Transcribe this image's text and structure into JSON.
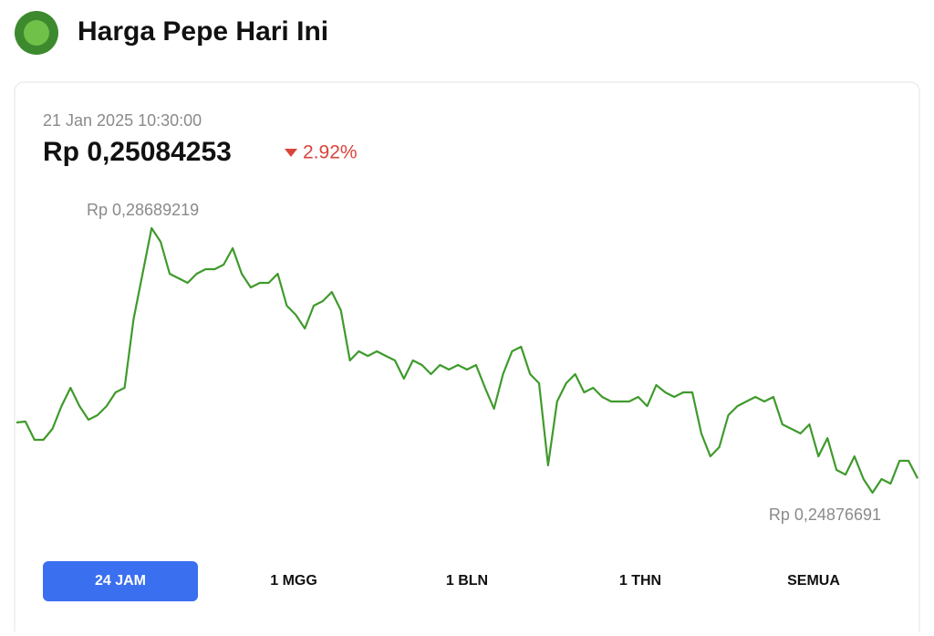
{
  "header": {
    "title": "Harga Pepe Hari Ini"
  },
  "price_panel": {
    "timestamp": "21 Jan 2025 10:30:00",
    "price": "Rp 0,25084253",
    "change": "2.92%"
  },
  "chart_data": {
    "type": "line",
    "color": "#3f9a2c",
    "high_label": "Rp 0,28689219",
    "low_label": "Rp 0,24876691",
    "values": [
      0.25889,
      0.25902,
      0.25639,
      0.25639,
      0.25797,
      0.26125,
      0.26388,
      0.26125,
      0.25928,
      0.25994,
      0.26125,
      0.26323,
      0.26388,
      0.27374,
      0.28032,
      0.28689,
      0.28492,
      0.28032,
      0.27966,
      0.279,
      0.28032,
      0.28097,
      0.28097,
      0.28163,
      0.284,
      0.28032,
      0.27834,
      0.279,
      0.279,
      0.28032,
      0.27572,
      0.2744,
      0.27243,
      0.27572,
      0.27637,
      0.27769,
      0.27506,
      0.26783,
      0.26914,
      0.26848,
      0.26914,
      0.26848,
      0.26783,
      0.2652,
      0.26783,
      0.26717,
      0.26586,
      0.26717,
      0.26651,
      0.26717,
      0.26651,
      0.26717,
      0.26388,
      0.26086,
      0.26586,
      0.26914,
      0.2698,
      0.26586,
      0.26454,
      0.25271,
      0.26191,
      0.26454,
      0.26586,
      0.26323,
      0.26388,
      0.26257,
      0.26191,
      0.26191,
      0.26191,
      0.26257,
      0.26125,
      0.26428,
      0.26323,
      0.26257,
      0.26323,
      0.26323,
      0.25731,
      0.25402,
      0.25534,
      0.25994,
      0.26125,
      0.26191,
      0.26257,
      0.26191,
      0.26257,
      0.25862,
      0.25797,
      0.25731,
      0.25862,
      0.25402,
      0.25665,
      0.25205,
      0.25139,
      0.25402,
      0.25074,
      0.24877,
      0.25074,
      0.25008,
      0.25337,
      0.25337,
      0.25084
    ]
  },
  "tabs": [
    "24 JAM",
    "1 MGG",
    "1 BLN",
    "1 THN",
    "SEMUA"
  ]
}
